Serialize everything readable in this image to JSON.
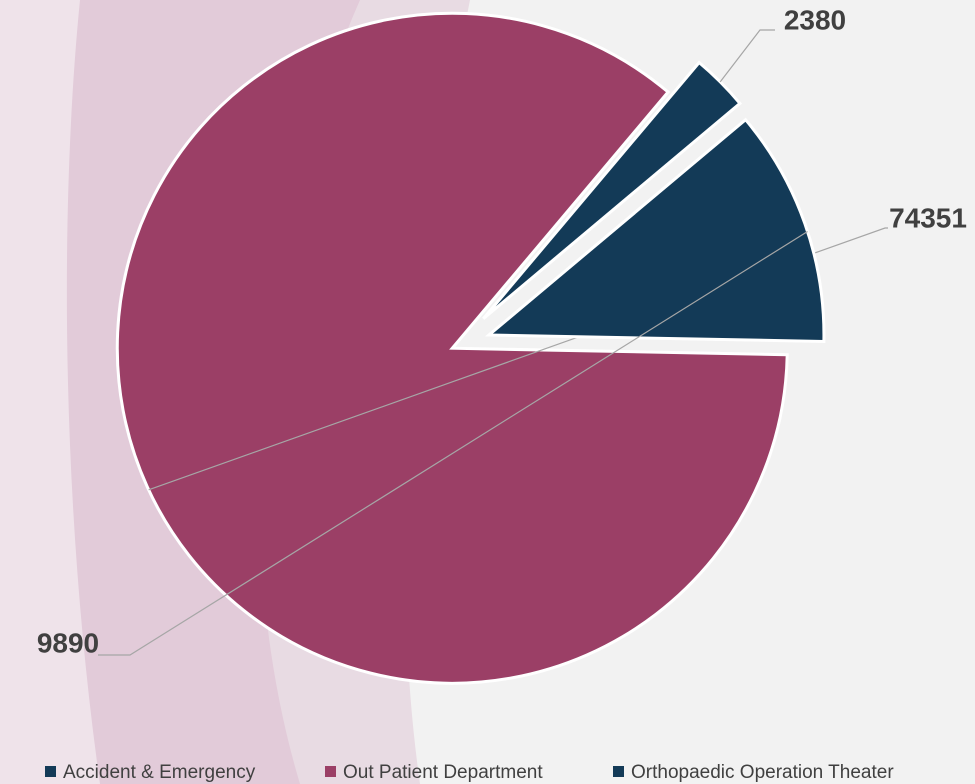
{
  "chart_data": {
    "type": "pie",
    "categories": [
      "Accident & Emergency",
      "Out Patient Department",
      "Orthopaedic Operation Theater"
    ],
    "values": [
      2380,
      74351,
      9890
    ],
    "colors": [
      "#133a57",
      "#9b3f66",
      "#133a57"
    ],
    "legend": "bottom"
  }
}
